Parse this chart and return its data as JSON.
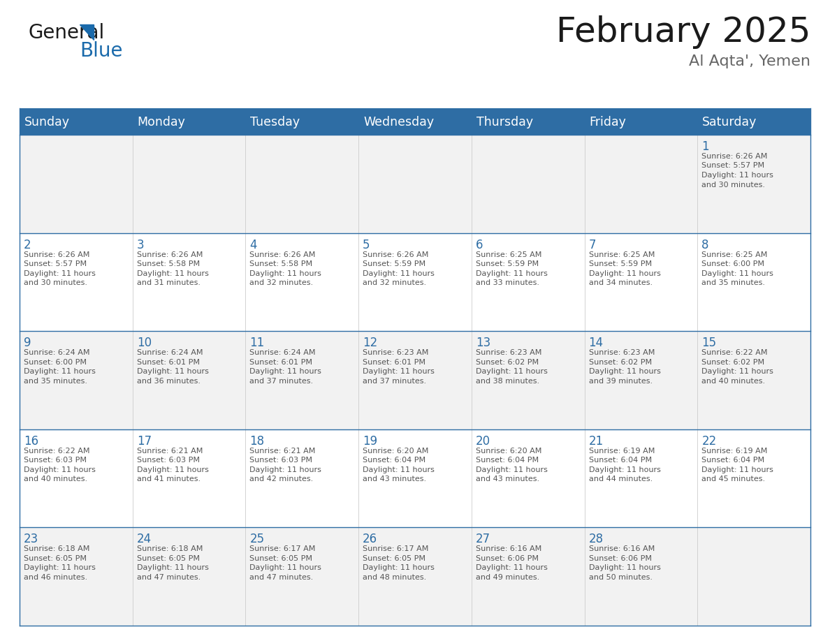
{
  "title": "February 2025",
  "subtitle": "Al Aqta', Yemen",
  "header_bg": "#2E6DA4",
  "header_text_color": "#FFFFFF",
  "cell_bg_odd": "#F2F2F2",
  "cell_bg_even": "#FFFFFF",
  "day_number_color": "#2E6DA4",
  "cell_text_color": "#555555",
  "border_color": "#2E6DA4",
  "border_color_light": "#AAAAAA",
  "days_of_week": [
    "Sunday",
    "Monday",
    "Tuesday",
    "Wednesday",
    "Thursday",
    "Friday",
    "Saturday"
  ],
  "weeks": [
    [
      {
        "day": null,
        "sunrise": null,
        "sunset": null,
        "daylight": null
      },
      {
        "day": null,
        "sunrise": null,
        "sunset": null,
        "daylight": null
      },
      {
        "day": null,
        "sunrise": null,
        "sunset": null,
        "daylight": null
      },
      {
        "day": null,
        "sunrise": null,
        "sunset": null,
        "daylight": null
      },
      {
        "day": null,
        "sunrise": null,
        "sunset": null,
        "daylight": null
      },
      {
        "day": null,
        "sunrise": null,
        "sunset": null,
        "daylight": null
      },
      {
        "day": 1,
        "sunrise": "6:26 AM",
        "sunset": "5:57 PM",
        "daylight": "11 hours\nand 30 minutes."
      }
    ],
    [
      {
        "day": 2,
        "sunrise": "6:26 AM",
        "sunset": "5:57 PM",
        "daylight": "11 hours\nand 30 minutes."
      },
      {
        "day": 3,
        "sunrise": "6:26 AM",
        "sunset": "5:58 PM",
        "daylight": "11 hours\nand 31 minutes."
      },
      {
        "day": 4,
        "sunrise": "6:26 AM",
        "sunset": "5:58 PM",
        "daylight": "11 hours\nand 32 minutes."
      },
      {
        "day": 5,
        "sunrise": "6:26 AM",
        "sunset": "5:59 PM",
        "daylight": "11 hours\nand 32 minutes."
      },
      {
        "day": 6,
        "sunrise": "6:25 AM",
        "sunset": "5:59 PM",
        "daylight": "11 hours\nand 33 minutes."
      },
      {
        "day": 7,
        "sunrise": "6:25 AM",
        "sunset": "5:59 PM",
        "daylight": "11 hours\nand 34 minutes."
      },
      {
        "day": 8,
        "sunrise": "6:25 AM",
        "sunset": "6:00 PM",
        "daylight": "11 hours\nand 35 minutes."
      }
    ],
    [
      {
        "day": 9,
        "sunrise": "6:24 AM",
        "sunset": "6:00 PM",
        "daylight": "11 hours\nand 35 minutes."
      },
      {
        "day": 10,
        "sunrise": "6:24 AM",
        "sunset": "6:01 PM",
        "daylight": "11 hours\nand 36 minutes."
      },
      {
        "day": 11,
        "sunrise": "6:24 AM",
        "sunset": "6:01 PM",
        "daylight": "11 hours\nand 37 minutes."
      },
      {
        "day": 12,
        "sunrise": "6:23 AM",
        "sunset": "6:01 PM",
        "daylight": "11 hours\nand 37 minutes."
      },
      {
        "day": 13,
        "sunrise": "6:23 AM",
        "sunset": "6:02 PM",
        "daylight": "11 hours\nand 38 minutes."
      },
      {
        "day": 14,
        "sunrise": "6:23 AM",
        "sunset": "6:02 PM",
        "daylight": "11 hours\nand 39 minutes."
      },
      {
        "day": 15,
        "sunrise": "6:22 AM",
        "sunset": "6:02 PM",
        "daylight": "11 hours\nand 40 minutes."
      }
    ],
    [
      {
        "day": 16,
        "sunrise": "6:22 AM",
        "sunset": "6:03 PM",
        "daylight": "11 hours\nand 40 minutes."
      },
      {
        "day": 17,
        "sunrise": "6:21 AM",
        "sunset": "6:03 PM",
        "daylight": "11 hours\nand 41 minutes."
      },
      {
        "day": 18,
        "sunrise": "6:21 AM",
        "sunset": "6:03 PM",
        "daylight": "11 hours\nand 42 minutes."
      },
      {
        "day": 19,
        "sunrise": "6:20 AM",
        "sunset": "6:04 PM",
        "daylight": "11 hours\nand 43 minutes."
      },
      {
        "day": 20,
        "sunrise": "6:20 AM",
        "sunset": "6:04 PM",
        "daylight": "11 hours\nand 43 minutes."
      },
      {
        "day": 21,
        "sunrise": "6:19 AM",
        "sunset": "6:04 PM",
        "daylight": "11 hours\nand 44 minutes."
      },
      {
        "day": 22,
        "sunrise": "6:19 AM",
        "sunset": "6:04 PM",
        "daylight": "11 hours\nand 45 minutes."
      }
    ],
    [
      {
        "day": 23,
        "sunrise": "6:18 AM",
        "sunset": "6:05 PM",
        "daylight": "11 hours\nand 46 minutes."
      },
      {
        "day": 24,
        "sunrise": "6:18 AM",
        "sunset": "6:05 PM",
        "daylight": "11 hours\nand 47 minutes."
      },
      {
        "day": 25,
        "sunrise": "6:17 AM",
        "sunset": "6:05 PM",
        "daylight": "11 hours\nand 47 minutes."
      },
      {
        "day": 26,
        "sunrise": "6:17 AM",
        "sunset": "6:05 PM",
        "daylight": "11 hours\nand 48 minutes."
      },
      {
        "day": 27,
        "sunrise": "6:16 AM",
        "sunset": "6:06 PM",
        "daylight": "11 hours\nand 49 minutes."
      },
      {
        "day": 28,
        "sunrise": "6:16 AM",
        "sunset": "6:06 PM",
        "daylight": "11 hours\nand 50 minutes."
      },
      {
        "day": null,
        "sunrise": null,
        "sunset": null,
        "daylight": null
      }
    ]
  ],
  "logo_color_general": "#1a1a1a",
  "logo_color_blue": "#1a6aab",
  "figsize": [
    11.88,
    9.18
  ],
  "dpi": 100
}
